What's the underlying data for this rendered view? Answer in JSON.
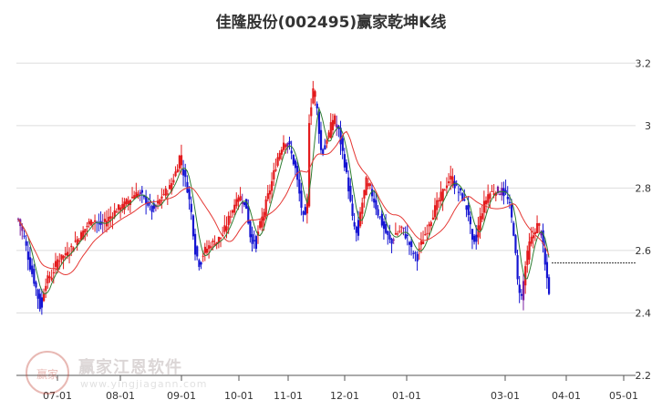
{
  "title": "佳隆股份(002495)赢家乾坤K线",
  "watermark": {
    "logo": "赢家",
    "text": "赢家江恩软件",
    "url": "www.yingjiagann.com"
  },
  "colors": {
    "up": "#e31a1c",
    "down": "#1414d2",
    "neutral": "#7b1fa2",
    "ma_short": "#2e7d32",
    "ma_long": "#e53935",
    "grid": "#dddddd",
    "axis": "#555555"
  },
  "chart_data": {
    "type": "candlestick",
    "title": "佳隆股份(002495)赢家乾坤K线",
    "y_axis": {
      "min": 2.2,
      "max": 3.3,
      "ticks": [
        2.2,
        2.4,
        2.6,
        2.8,
        3.0,
        3.2
      ],
      "tick_labels": [
        "2.2",
        "2.4",
        "2.6",
        "2.8",
        "3",
        "3.2"
      ],
      "position": "right"
    },
    "x_axis": {
      "tick_labels": [
        "07-01",
        "08-01",
        "09-01",
        "10-01",
        "11-01",
        "12-01",
        "01-01",
        "03-01",
        "04-01",
        "05-01"
      ]
    },
    "grid": "horizontal",
    "close_anchors": [
      [
        0,
        2.7
      ],
      [
        3,
        2.64
      ],
      [
        6,
        2.55
      ],
      [
        9,
        2.48
      ],
      [
        11,
        2.42
      ],
      [
        14,
        2.5
      ],
      [
        17,
        2.52
      ],
      [
        20,
        2.57
      ],
      [
        23,
        2.58
      ],
      [
        26,
        2.6
      ],
      [
        29,
        2.63
      ],
      [
        32,
        2.65
      ],
      [
        35,
        2.68
      ],
      [
        38,
        2.7
      ],
      [
        41,
        2.68
      ],
      [
        44,
        2.69
      ],
      [
        47,
        2.71
      ],
      [
        50,
        2.73
      ],
      [
        53,
        2.74
      ],
      [
        56,
        2.76
      ],
      [
        59,
        2.78
      ],
      [
        62,
        2.78
      ],
      [
        65,
        2.76
      ],
      [
        68,
        2.73
      ],
      [
        71,
        2.75
      ],
      [
        74,
        2.78
      ],
      [
        77,
        2.8
      ],
      [
        80,
        2.85
      ],
      [
        82,
        2.9
      ],
      [
        84,
        2.85
      ],
      [
        86,
        2.8
      ],
      [
        88,
        2.72
      ],
      [
        90,
        2.6
      ],
      [
        92,
        2.56
      ],
      [
        95,
        2.6
      ],
      [
        98,
        2.62
      ],
      [
        101,
        2.63
      ],
      [
        104,
        2.65
      ],
      [
        107,
        2.7
      ],
      [
        110,
        2.75
      ],
      [
        113,
        2.77
      ],
      [
        116,
        2.74
      ],
      [
        118,
        2.65
      ],
      [
        120,
        2.62
      ],
      [
        123,
        2.68
      ],
      [
        126,
        2.75
      ],
      [
        129,
        2.82
      ],
      [
        132,
        2.9
      ],
      [
        135,
        2.95
      ],
      [
        138,
        2.93
      ],
      [
        141,
        2.86
      ],
      [
        143,
        2.78
      ],
      [
        145,
        2.7
      ],
      [
        147,
        2.75
      ],
      [
        148,
        3.02
      ],
      [
        150,
        3.12
      ],
      [
        152,
        3.05
      ],
      [
        154,
        2.92
      ],
      [
        157,
        2.95
      ],
      [
        160,
        3.02
      ],
      [
        163,
        2.98
      ],
      [
        166,
        2.88
      ],
      [
        168,
        2.8
      ],
      [
        170,
        2.7
      ],
      [
        172,
        2.65
      ],
      [
        174,
        2.72
      ],
      [
        177,
        2.82
      ],
      [
        180,
        2.78
      ],
      [
        183,
        2.72
      ],
      [
        186,
        2.67
      ],
      [
        189,
        2.63
      ],
      [
        192,
        2.65
      ],
      [
        195,
        2.67
      ],
      [
        198,
        2.64
      ],
      [
        200,
        2.6
      ],
      [
        202,
        2.58
      ],
      [
        205,
        2.62
      ],
      [
        208,
        2.67
      ],
      [
        211,
        2.72
      ],
      [
        214,
        2.76
      ],
      [
        217,
        2.8
      ],
      [
        220,
        2.83
      ],
      [
        223,
        2.8
      ],
      [
        226,
        2.77
      ],
      [
        229,
        2.72
      ],
      [
        231,
        2.62
      ],
      [
        233,
        2.65
      ],
      [
        236,
        2.73
      ],
      [
        239,
        2.78
      ],
      [
        242,
        2.79
      ],
      [
        245,
        2.79
      ],
      [
        248,
        2.78
      ],
      [
        250,
        2.74
      ],
      [
        252,
        2.66
      ],
      [
        254,
        2.5
      ],
      [
        256,
        2.45
      ],
      [
        258,
        2.55
      ],
      [
        260,
        2.62
      ],
      [
        262,
        2.65
      ],
      [
        264,
        2.68
      ],
      [
        266,
        2.66
      ],
      [
        268,
        2.55
      ],
      [
        270,
        2.47
      ]
    ],
    "bar_count": 271
  }
}
